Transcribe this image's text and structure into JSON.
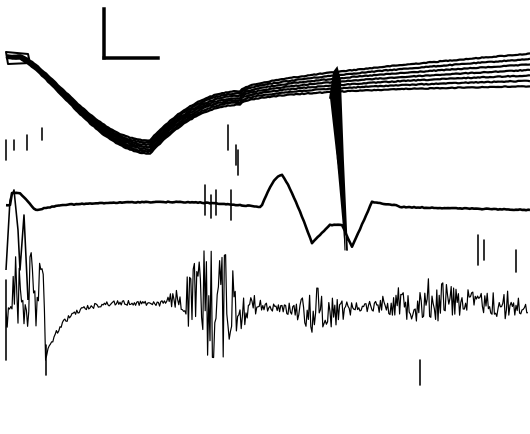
{
  "figure": {
    "kind": "oscilloscope-trace-recording",
    "background": "#ffffff",
    "ink": "#000000",
    "elements": [
      "scale-bar",
      "upper-overlaid-traces",
      "middle-trace",
      "lower-burst-trace",
      "vertical-markers"
    ]
  }
}
